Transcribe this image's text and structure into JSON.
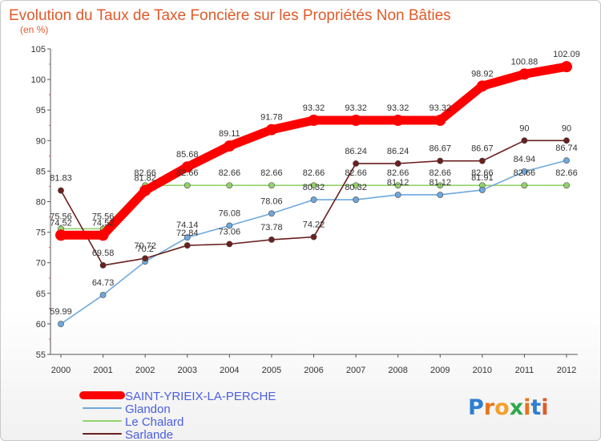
{
  "chart_data": {
    "type": "line",
    "title": "Evolution du Taux de Taxe Foncière sur les Propriétés Non Bâties",
    "ylabel": "(en %)",
    "xlabel": "",
    "ylim": [
      55,
      105
    ],
    "yticks": [
      55,
      60,
      65,
      70,
      75,
      80,
      85,
      90,
      95,
      100,
      105
    ],
    "categories": [
      "2000",
      "2001",
      "2002",
      "2003",
      "2004",
      "2005",
      "2006",
      "2007",
      "2008",
      "2009",
      "2010",
      "2011",
      "2012"
    ],
    "series": [
      {
        "name": "SAINT-YRIEIX-LA-PERCHE",
        "color": "#ff0000",
        "values": [
          74.52,
          74.52,
          81.82,
          85.68,
          89.11,
          91.78,
          93.32,
          93.32,
          93.32,
          93.32,
          98.92,
          100.88,
          102.09
        ],
        "labels": [
          "74.52",
          "74.52",
          "81.82",
          "85.68",
          "89.11",
          "91.78",
          "93.32",
          "93.32",
          "93.32",
          "93.32",
          "98.92",
          "100.88",
          "102.09"
        ]
      },
      {
        "name": "Glandon",
        "color": "#6fa8dc",
        "values": [
          59.99,
          64.73,
          70.2,
          74.14,
          76.08,
          78.06,
          80.32,
          80.32,
          81.12,
          81.12,
          81.91,
          84.94,
          86.74
        ],
        "labels": [
          "59.99",
          "64.73",
          "70.2",
          "74.14",
          "76.08",
          "78.06",
          "80.32",
          "80.32",
          "81.12",
          "81.12",
          "81.91",
          "84.94",
          "86.74"
        ]
      },
      {
        "name": "Le Chalard",
        "color": "#93d26b",
        "values": [
          75.56,
          75.56,
          82.66,
          82.66,
          82.66,
          82.66,
          82.66,
          82.66,
          82.66,
          82.66,
          82.66,
          82.66,
          82.66
        ],
        "labels": [
          "75.56",
          "75.56",
          "82.66",
          "82.66",
          "82.66",
          "82.66",
          "82.66",
          "82.66",
          "82.66",
          "82.66",
          "82.66",
          "82.66",
          "82.66"
        ]
      },
      {
        "name": "Sarlande",
        "color": "#6b1f1f",
        "values": [
          81.83,
          69.58,
          70.72,
          72.84,
          73.06,
          73.78,
          74.22,
          86.24,
          86.24,
          86.67,
          86.67,
          90,
          90
        ],
        "labels": [
          "81.83",
          "69.58",
          "70.72",
          "72.84",
          "73.06",
          "73.78",
          "74.22",
          "86.24",
          "86.24",
          "86.67",
          "86.67",
          "90",
          "90"
        ]
      }
    ],
    "legend_position": "bottom-left",
    "grid": false
  },
  "brand": {
    "text": "Proxiti"
  }
}
